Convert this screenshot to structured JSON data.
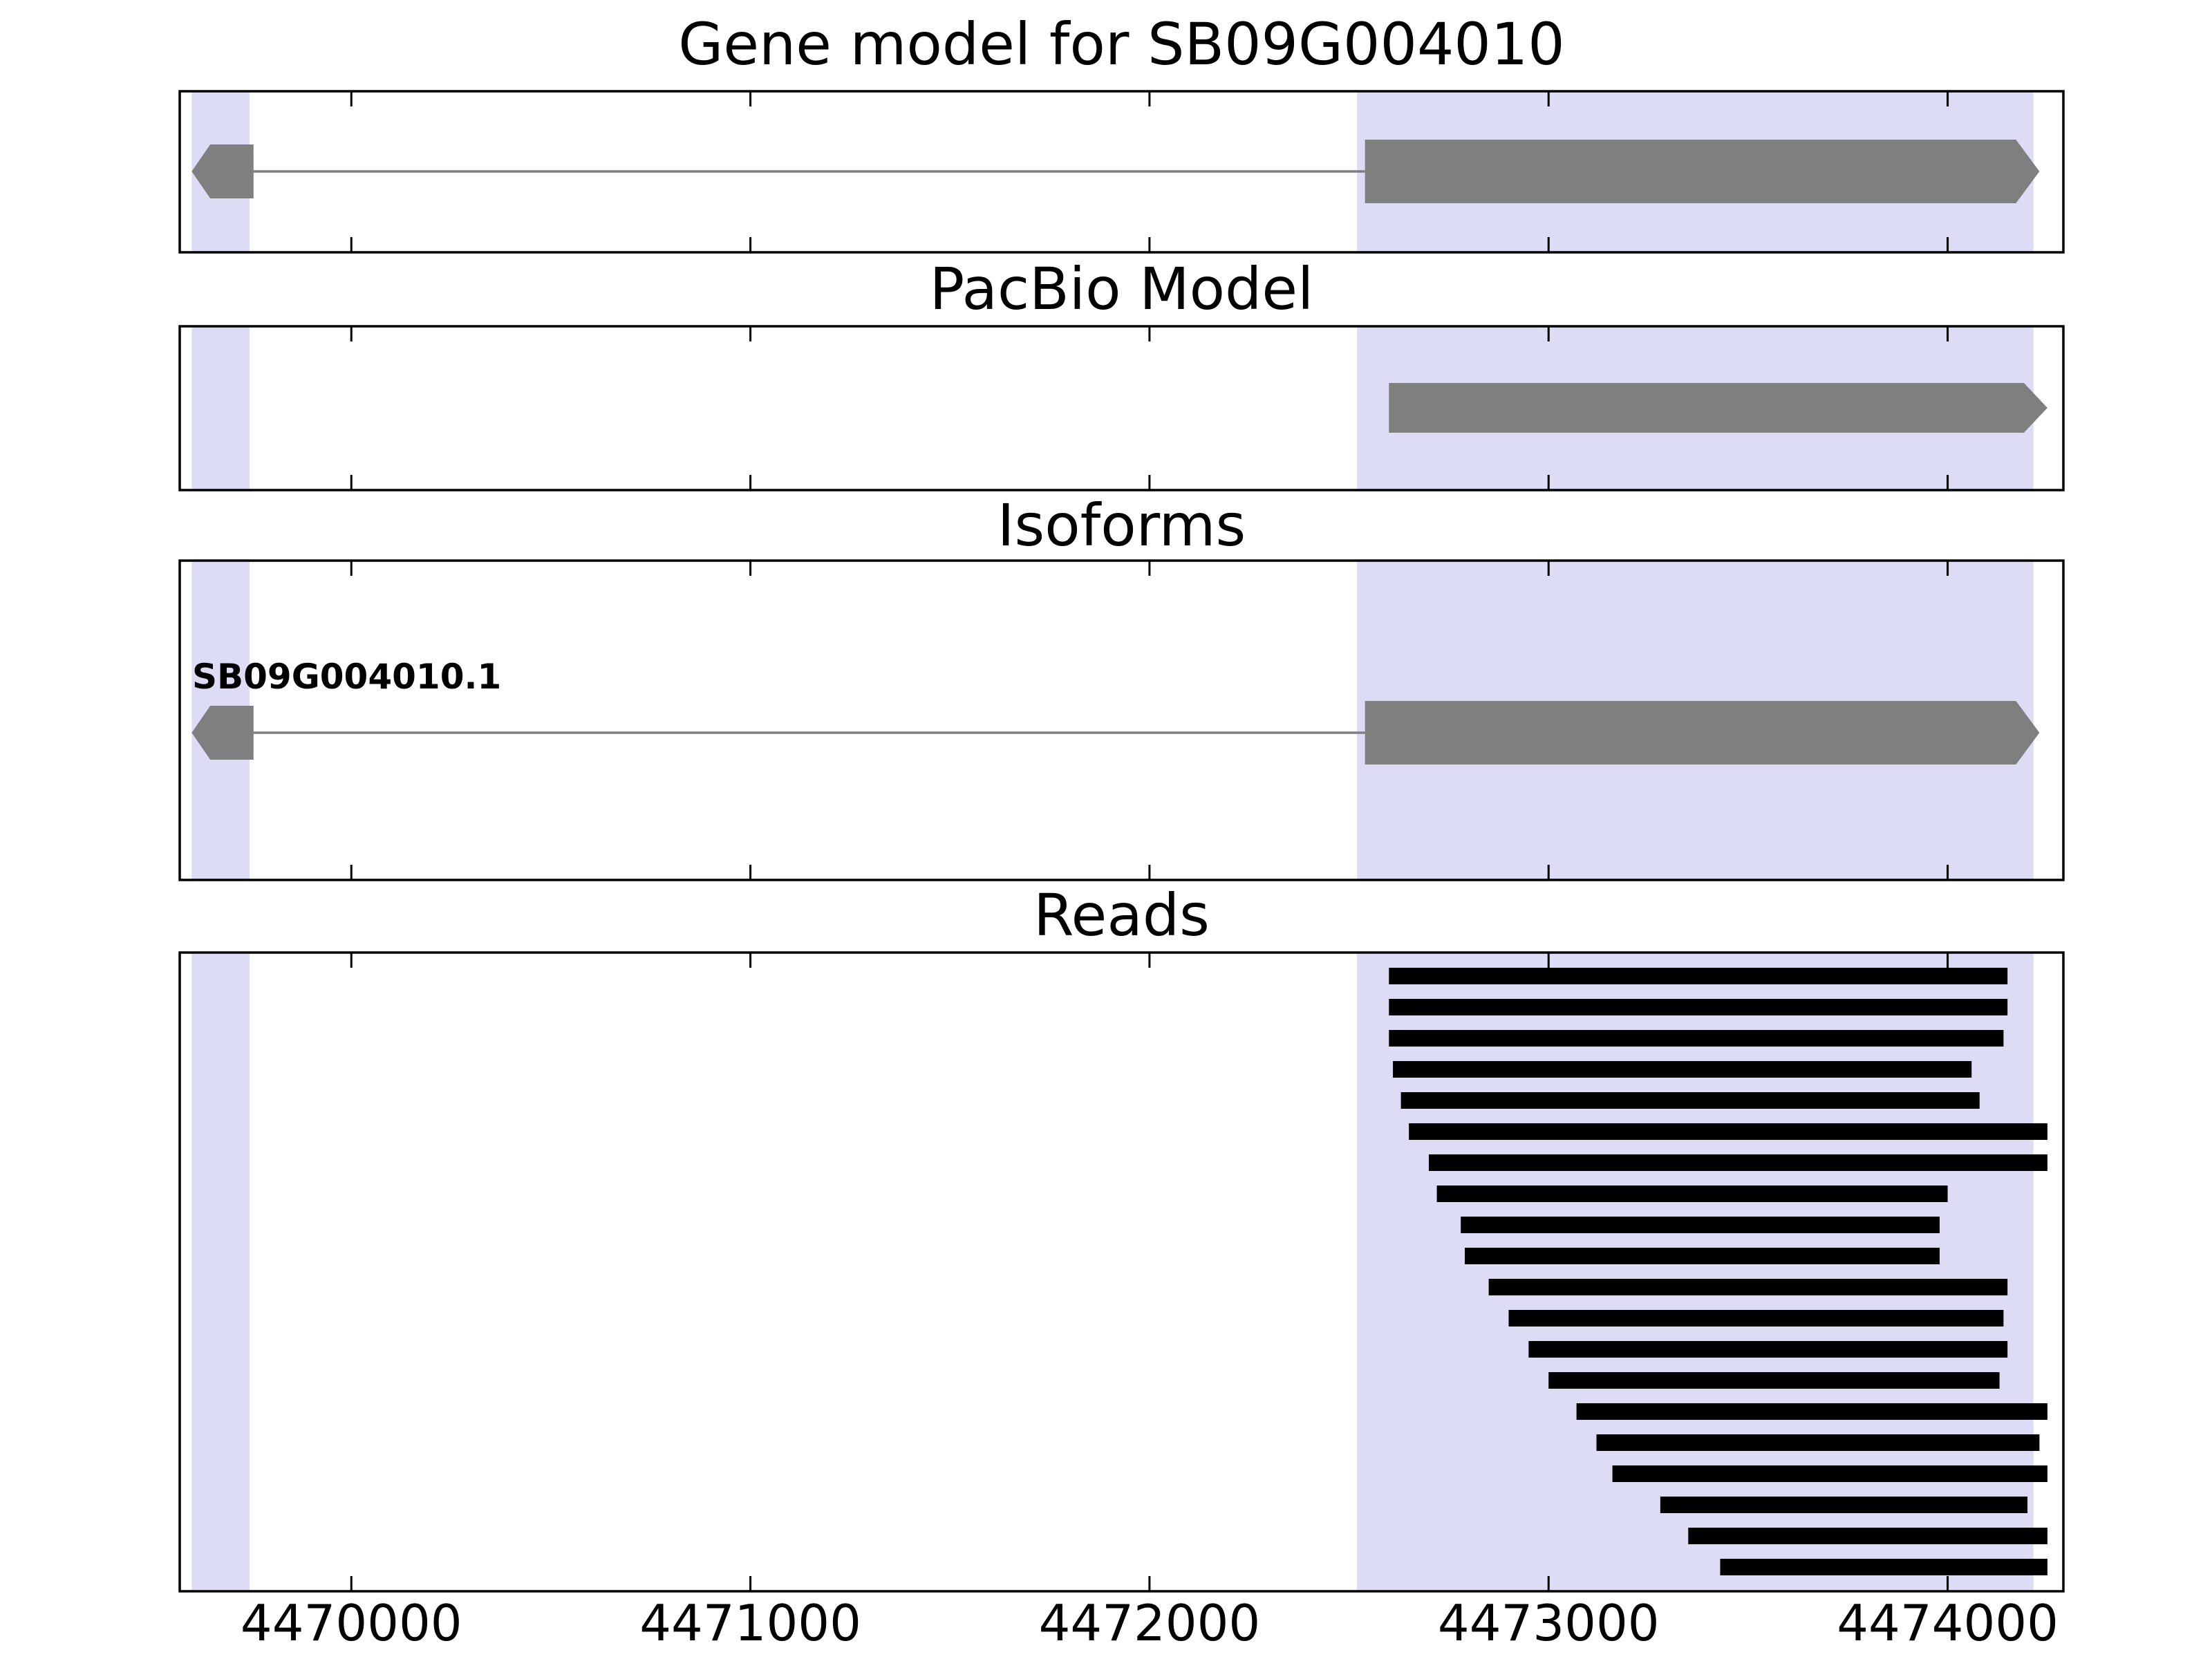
{
  "figure": {
    "background": "#ffffff"
  },
  "chart_data": {
    "type": "genome-browser",
    "x_domain": [
      4469570,
      4474290
    ],
    "x_ticks": [
      4470000,
      4471000,
      4472000,
      4473000,
      4474000
    ],
    "x_tick_labels": [
      "4470000",
      "4471000",
      "4472000",
      "4473000",
      "4474000"
    ],
    "highlight_bands": [
      {
        "start": 4469600,
        "end": 4469745
      },
      {
        "start": 4472520,
        "end": 4474215
      }
    ],
    "colors": {
      "band": "#dcdcf5",
      "feature_gray": "#7f7f7f",
      "read_black": "#000000",
      "border": "#000000",
      "background": "#ffffff"
    },
    "panels": [
      {
        "id": "gene-model",
        "title": "Gene model for SB09G004010",
        "features": [
          {
            "kind": "exon",
            "start": 4469600,
            "end": 4469755,
            "tip": "left",
            "height": 78
          },
          {
            "kind": "intron",
            "start": 4469755,
            "end": 4472540
          },
          {
            "kind": "exon",
            "start": 4472540,
            "end": 4474230,
            "tip": "right",
            "height": 92
          }
        ]
      },
      {
        "id": "pacbio-model",
        "title": "PacBio Model",
        "features": [
          {
            "kind": "exon",
            "start": 4472600,
            "end": 4474250,
            "tip": "right",
            "height": 72
          }
        ]
      },
      {
        "id": "isoforms",
        "title": "Isoforms",
        "isoform_label": "SB09G004010.1",
        "features": [
          {
            "kind": "exon",
            "start": 4469600,
            "end": 4469755,
            "tip": "left",
            "height": 78
          },
          {
            "kind": "intron",
            "start": 4469755,
            "end": 4472540
          },
          {
            "kind": "exon",
            "start": 4472540,
            "end": 4474230,
            "tip": "right",
            "height": 92
          }
        ]
      },
      {
        "id": "reads",
        "title": "Reads",
        "reads": [
          [
            4472600,
            4474150
          ],
          [
            4472600,
            4474150
          ],
          [
            4472600,
            4474140
          ],
          [
            4472610,
            4474060
          ],
          [
            4472630,
            4474080
          ],
          [
            4472650,
            4474250
          ],
          [
            4472700,
            4474250
          ],
          [
            4472720,
            4474000
          ],
          [
            4472780,
            4473980
          ],
          [
            4472790,
            4473980
          ],
          [
            4472850,
            4474150
          ],
          [
            4472900,
            4474140
          ],
          [
            4472950,
            4474150
          ],
          [
            4473000,
            4474130
          ],
          [
            4473070,
            4474250
          ],
          [
            4473120,
            4474230
          ],
          [
            4473160,
            4474250
          ],
          [
            4473280,
            4474200
          ],
          [
            4473350,
            4474250
          ],
          [
            4473430,
            4474250
          ]
        ]
      }
    ]
  }
}
